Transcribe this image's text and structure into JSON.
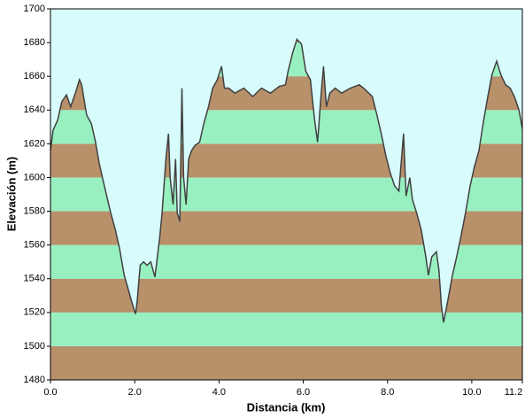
{
  "chart_data": {
    "type": "area",
    "xlabel": "Distancia   (km)",
    "ylabel": "Elevación (m)",
    "xlim": [
      0,
      11.2
    ],
    "ylim": [
      1480,
      1700
    ],
    "xticks": [
      {
        "value": 0,
        "label": "0.0"
      },
      {
        "value": 2,
        "label": "2.0"
      },
      {
        "value": 4,
        "label": "4.0"
      },
      {
        "value": 6,
        "label": "6.0"
      },
      {
        "value": 8,
        "label": "8.0"
      },
      {
        "value": 10,
        "label": "10.0"
      },
      11.2
    ],
    "yticks": [
      1480,
      1500,
      1520,
      1540,
      1560,
      1580,
      1600,
      1620,
      1640,
      1660,
      1680,
      1700
    ],
    "sky_color": "#d8fcfc",
    "band_colors": [
      "#b8906a",
      "#98f0c0"
    ],
    "color": "#404040",
    "x": [
      0,
      0.06,
      0.17,
      0.27,
      0.38,
      0.48,
      0.59,
      0.69,
      0.74,
      0.86,
      0.97,
      1.07,
      1.16,
      1.28,
      1.43,
      1.54,
      1.64,
      1.75,
      1.81,
      1.92,
      2.02,
      2.06,
      2.13,
      2.21,
      2.29,
      2.38,
      2.48,
      2.59,
      2.65,
      2.74,
      2.8,
      2.84,
      2.91,
      2.97,
      3.01,
      3.07,
      3.12,
      3.16,
      3.22,
      3.28,
      3.35,
      3.43,
      3.54,
      3.64,
      3.75,
      3.85,
      3.96,
      4.06,
      4.13,
      4.23,
      4.38,
      4.59,
      4.8,
      5.01,
      5.22,
      5.43,
      5.58,
      5.64,
      5.75,
      5.85,
      5.96,
      6.06,
      6.17,
      6.27,
      6.34,
      6.42,
      6.48,
      6.55,
      6.63,
      6.76,
      6.91,
      7.12,
      7.33,
      7.43,
      7.64,
      7.75,
      7.85,
      7.96,
      8.06,
      8.17,
      8.27,
      8.38,
      8.44,
      8.53,
      8.59,
      8.69,
      8.8,
      8.91,
      8.97,
      9.05,
      9.16,
      9.22,
      9.28,
      9.33,
      9.43,
      9.54,
      9.64,
      9.75,
      9.85,
      9.96,
      10.06,
      10.17,
      10.27,
      10.38,
      10.48,
      10.59,
      10.69,
      10.8,
      10.91,
      11.01,
      11.12,
      11.2
    ],
    "values": [
      1616,
      1628,
      1634,
      1645,
      1649,
      1642,
      1650,
      1658,
      1655,
      1637,
      1632,
      1621,
      1608,
      1595,
      1579,
      1569,
      1558,
      1542,
      1537,
      1527,
      1519,
      1527,
      1548,
      1550,
      1548,
      1550,
      1541,
      1564,
      1579,
      1611,
      1626,
      1600,
      1584,
      1611,
      1579,
      1574,
      1653,
      1600,
      1584,
      1611,
      1616,
      1619,
      1621,
      1632,
      1642,
      1653,
      1658,
      1666,
      1653,
      1653,
      1650,
      1653,
      1648,
      1653,
      1650,
      1654,
      1655,
      1663,
      1674,
      1682,
      1679,
      1663,
      1658,
      1634,
      1621,
      1648,
      1666,
      1642,
      1650,
      1653,
      1650,
      1653,
      1655,
      1653,
      1648,
      1637,
      1626,
      1613,
      1603,
      1595,
      1592,
      1626,
      1589,
      1600,
      1587,
      1579,
      1569,
      1553,
      1542,
      1553,
      1556,
      1545,
      1524,
      1514,
      1527,
      1542,
      1553,
      1566,
      1579,
      1595,
      1606,
      1616,
      1632,
      1648,
      1661,
      1669,
      1661,
      1655,
      1653,
      1648,
      1640,
      1629
    ]
  }
}
